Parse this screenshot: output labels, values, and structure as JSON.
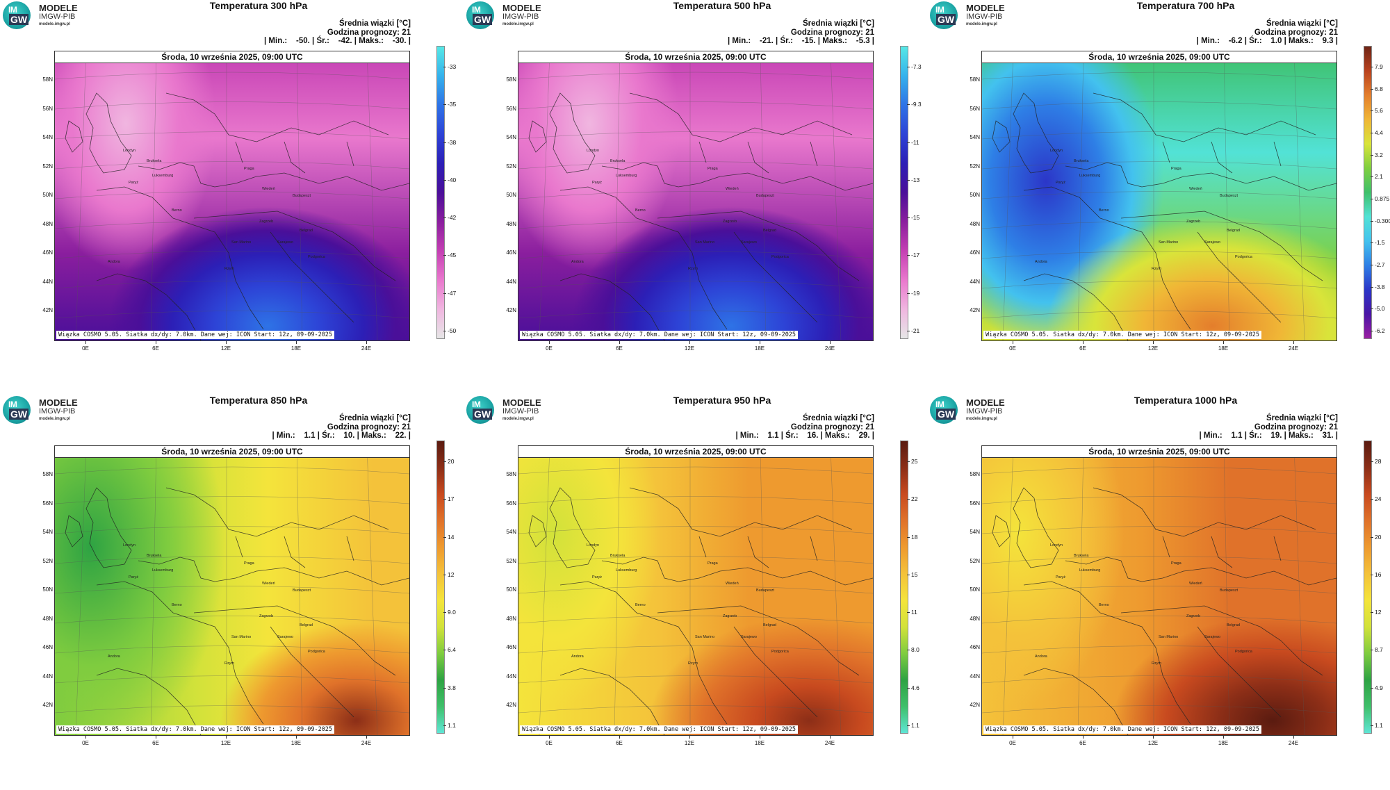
{
  "logo": {
    "line1": "MODELE",
    "line2": "IMGW-PIB",
    "line3": "modele.imgw.pl",
    "badge_top": "IM",
    "badge_bottom": "GW"
  },
  "common": {
    "avg_label": "Średnia wiązki [°C]",
    "forecast_hour": "Godzina prognozy: 21",
    "date": "Środa, 10 września 2025, 09:00 UTC",
    "footer": "Wiązka COSMO 5.05. Siatka dx/dy: 7.0km. Dane wej: ICON Start: 12z, 09-09-2025",
    "lat_labels": [
      "58N",
      "56N",
      "54N",
      "52N",
      "50N",
      "48N",
      "46N",
      "44N",
      "42N"
    ],
    "lon_labels": [
      "0E",
      "6E",
      "12E",
      "18E",
      "24E"
    ],
    "cities": [
      "Londyn",
      "Bruksela",
      "Paryż",
      "Luksemburg",
      "Praga",
      "Wiedeń",
      "Budapeszt",
      "Berno",
      "Zagrzeb",
      "Belgrad",
      "San Marino",
      "Sarajewo",
      "Rzym",
      "Podgorica",
      "Andora"
    ]
  },
  "colors": {
    "cold_scale": [
      "#e6e6e6",
      "#f0b6e0",
      "#e978cd",
      "#c43fb3",
      "#8a1e9e",
      "#4a0f99",
      "#2c1fb6",
      "#2d43d6",
      "#2e73e6",
      "#35b2ec",
      "#57e8e6"
    ],
    "warm_scale": [
      "#5fe5d5",
      "#3fbf6a",
      "#2ea343",
      "#7fcc3f",
      "#d2e23a",
      "#f4e43b",
      "#f4c23a",
      "#ee9a2f",
      "#e0722a",
      "#c84a1f",
      "#8c2e17",
      "#5a1b10"
    ],
    "mixed_scale": [
      "#9a1ea2",
      "#4a16a6",
      "#2b36c8",
      "#2e7fe6",
      "#43c2ee",
      "#52e2d6",
      "#3ec06a",
      "#7fcf3f",
      "#d9e43a",
      "#f0b636",
      "#e47e2c",
      "#b9421e",
      "#6e2415"
    ]
  },
  "panels": [
    {
      "title": "Temperatura 300 hPa",
      "stats": "| Min.:    -50. | Śr.:    -42. | Maks.:    -30. |",
      "scale": "cold",
      "ticks": [
        "-33",
        "-35",
        "-38",
        "-40",
        "-42",
        "-45",
        "-47",
        "-50"
      ]
    },
    {
      "title": "Temperatura 500 hPa",
      "stats": "| Min.:    -21. | Śr.:    -15. | Maks.:    -5.3 |",
      "scale": "cold",
      "ticks": [
        "-7.3",
        "-9.3",
        "-11",
        "-13",
        "-15",
        "-17",
        "-19",
        "-21"
      ]
    },
    {
      "title": "Temperatura 700 hPa",
      "stats": "| Min.:    -6.2 | Śr.:    1.0 | Maks.:    9.3 |",
      "scale": "mixed",
      "ticks": [
        "7.9",
        "6.8",
        "5.6",
        "4.4",
        "3.2",
        "2.1",
        "0.875",
        "-0.300",
        "-1.5",
        "-2.7",
        "-3.8",
        "-5.0",
        "-6.2"
      ]
    },
    {
      "title": "Temperatura 850 hPa",
      "stats": "| Min.:    1.1 | Śr.:    10. | Maks.:    22. |",
      "scale": "warm",
      "ticks": [
        "20",
        "17",
        "14",
        "12",
        "9.0",
        "6.4",
        "3.8",
        "1.1"
      ]
    },
    {
      "title": "Temperatura 950 hPa",
      "stats": "| Min.:    1.1 | Śr.:    16. | Maks.:    29. |",
      "scale": "warm",
      "ticks": [
        "25",
        "22",
        "18",
        "15",
        "11",
        "8.0",
        "4.6",
        "1.1"
      ]
    },
    {
      "title": "Temperatura 1000 hPa",
      "stats": "| Min.:    1.1 | Śr.:    19. | Maks.:    31. |",
      "scale": "warm",
      "ticks": [
        "28",
        "24",
        "20",
        "16",
        "12",
        "8.7",
        "4.9",
        "1.1"
      ]
    }
  ]
}
